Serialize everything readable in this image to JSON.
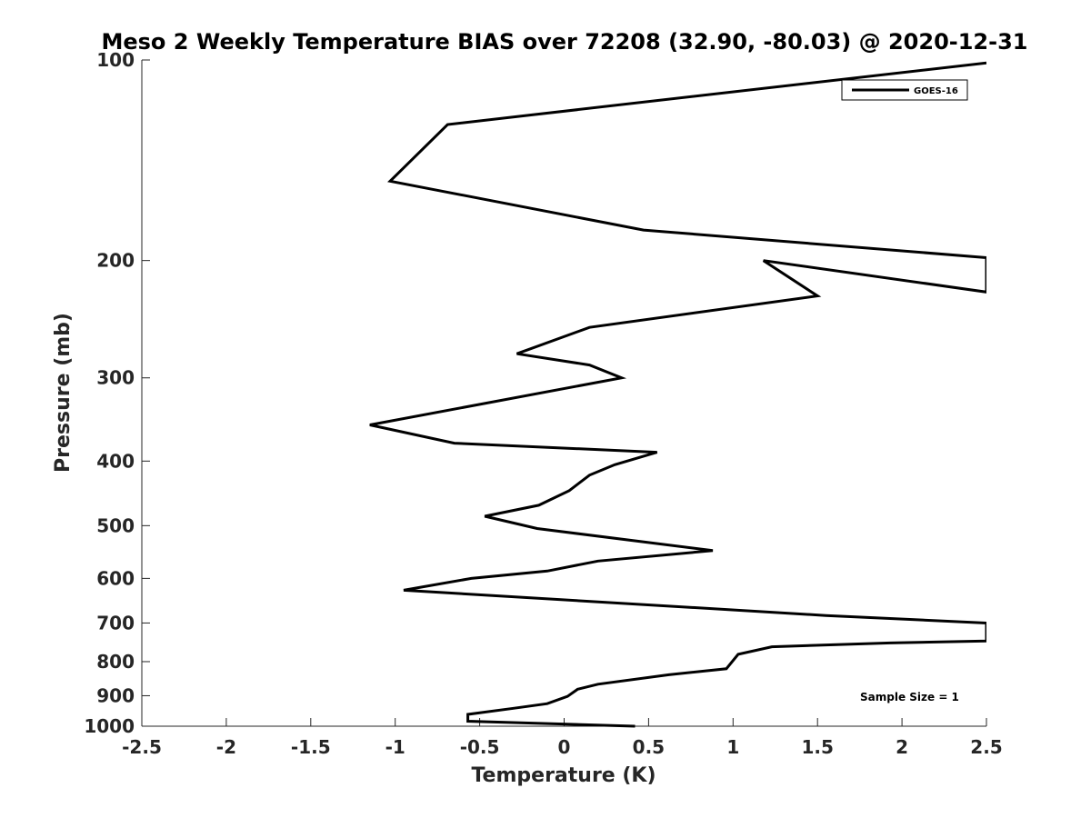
{
  "chart_data": {
    "type": "line",
    "title": "Meso 2 Weekly Temperature BIAS over 72208 (32.90, -80.03) @ 2020-12-31",
    "xlabel": "Temperature (K)",
    "ylabel": "Pressure (mb)",
    "xlim": [
      -2.5,
      2.5
    ],
    "ylim": [
      100,
      1000
    ],
    "y_scale": "log",
    "y_reversed": true,
    "x_ticks": [
      "-2.5",
      "-2",
      "-1.5",
      "-1",
      "-0.5",
      "0",
      "0.5",
      "1",
      "1.5",
      "2",
      "2.5"
    ],
    "x_tick_values": [
      -2.5,
      -2,
      -1.5,
      -1,
      -0.5,
      0,
      0.5,
      1,
      1.5,
      2,
      2.5
    ],
    "y_ticks": [
      "100",
      "200",
      "300",
      "400",
      "500",
      "600",
      "700",
      "800",
      "900",
      "1000"
    ],
    "y_tick_values": [
      100,
      200,
      300,
      400,
      500,
      600,
      700,
      800,
      900,
      1000
    ],
    "grid": false,
    "legend_position": "top-right",
    "annotation": "Sample Size = 1",
    "series": [
      {
        "name": "GOES-16",
        "color": "#000000",
        "x": [
          2.5,
          -0.69,
          -1.03,
          0.47,
          2.5,
          2.5,
          1.18,
          1.5,
          0.15,
          -0.28,
          0.15,
          0.34,
          -1.15,
          -0.65,
          0.55,
          0.3,
          0.15,
          0.03,
          -0.15,
          -0.47,
          -0.16,
          0.88,
          0.2,
          -0.1,
          -0.55,
          -0.95,
          1.55,
          2.5,
          2.5,
          1.93,
          1.23,
          1.03,
          0.96,
          0.62,
          0.2,
          0.08,
          0.02,
          -0.1,
          -0.3,
          -0.57,
          -0.57,
          0.42
        ],
        "y": [
          101,
          125,
          152,
          180,
          198,
          223,
          200,
          226,
          252,
          276,
          287,
          300,
          353,
          376,
          388,
          405,
          420,
          443,
          466,
          484,
          505,
          545,
          565,
          585,
          600,
          625,
          682,
          700,
          745,
          750,
          760,
          780,
          820,
          837,
          865,
          880,
          902,
          925,
          940,
          960,
          983,
          1000
        ]
      }
    ]
  }
}
